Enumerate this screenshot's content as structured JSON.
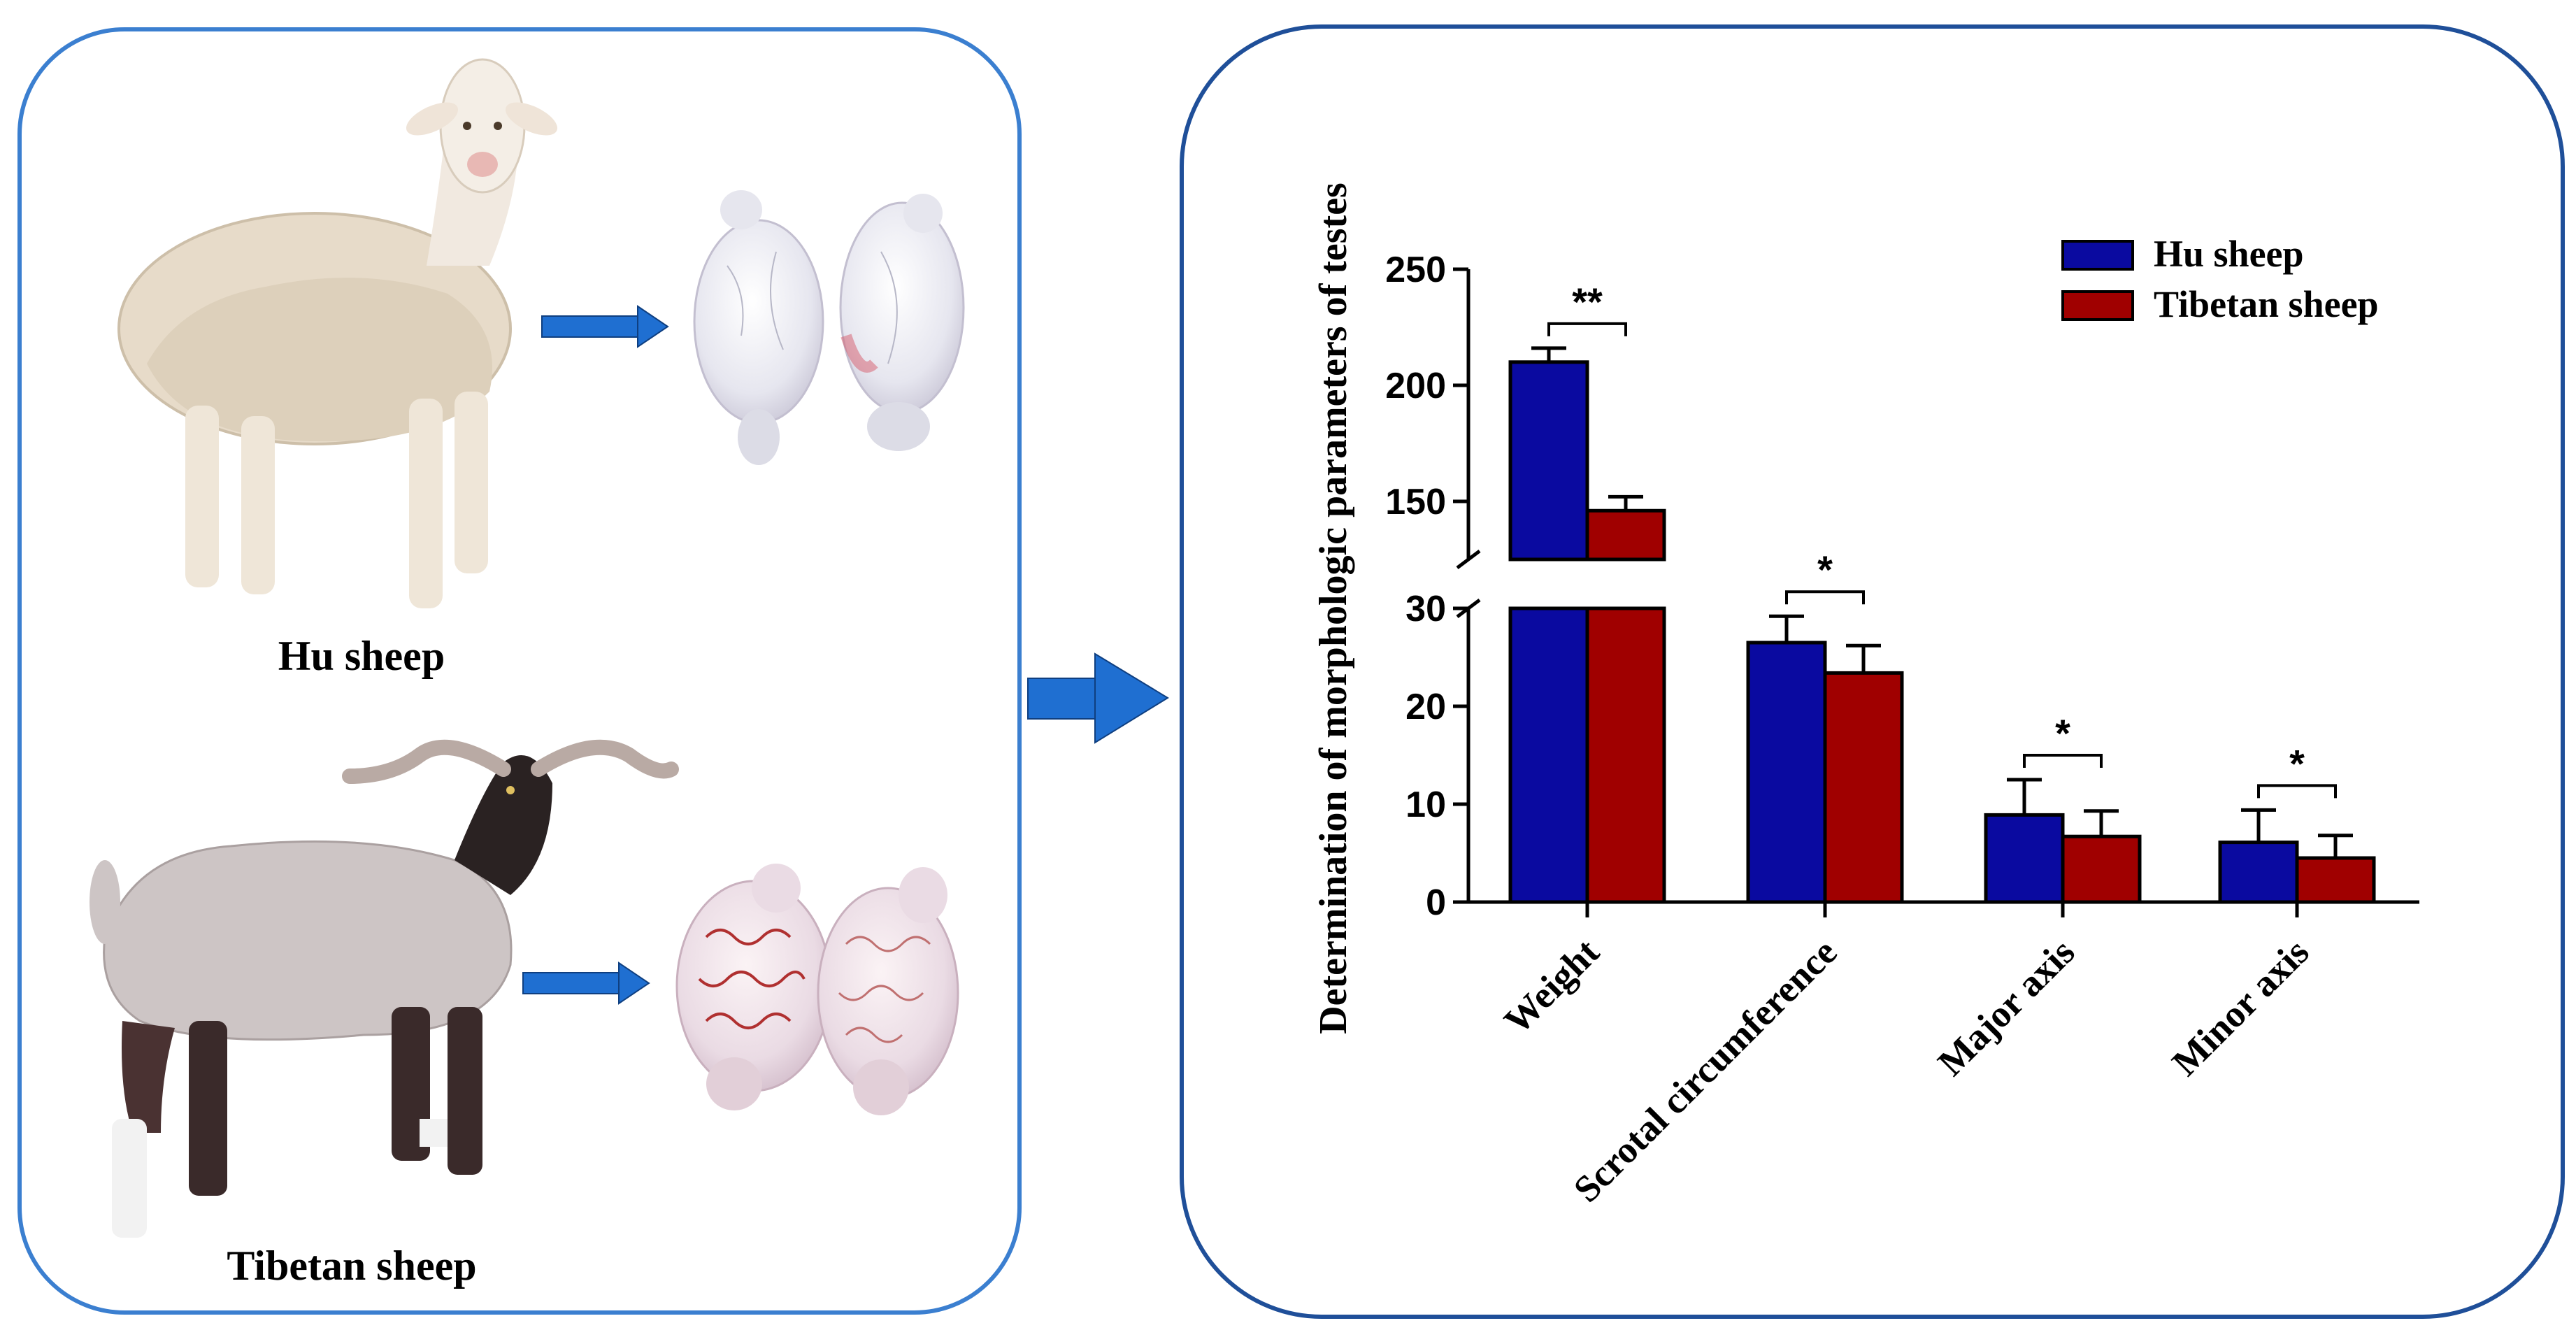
{
  "left_panel": {
    "labels": {
      "hu": "Hu sheep",
      "tibetan": "Tibetan sheep"
    }
  },
  "colors": {
    "panel_border_left": "#3b7fd0",
    "panel_border_right": "#1f4f99",
    "arrow": "#1f6fd1",
    "hu": "#0a0aa0",
    "tibetan": "#a00000",
    "hu_wool": "#e8dccb",
    "tibetan_body": "#cfc7c7",
    "tibetan_head": "#2a2222",
    "testis": "#eeeef4",
    "vessel": "#b03030"
  },
  "chart_data": {
    "type": "bar",
    "title": "",
    "ylabel": "Determination of morphologic parameters of testes",
    "xlabel": "",
    "categories": [
      "Weight",
      "Scrotal circumference",
      "Major axis",
      "Minor axis"
    ],
    "series": [
      {
        "name": "Hu sheep",
        "values": [
          210,
          26.5,
          8.9,
          6.1
        ],
        "errors": [
          6,
          2.7,
          3.6,
          3.3
        ]
      },
      {
        "name": "Tibetan sheep",
        "values": [
          146,
          23.4,
          6.7,
          4.5
        ],
        "errors": [
          6,
          2.8,
          2.6,
          2.3
        ]
      }
    ],
    "axis_break": {
      "lower": [
        0,
        30
      ],
      "upper": [
        125,
        250
      ]
    },
    "yticks_lower": [
      "0",
      "10",
      "20",
      "30"
    ],
    "yticks_upper": [
      "150",
      "200",
      "250"
    ],
    "significance": [
      "**",
      "*",
      "*",
      "*"
    ],
    "legend": {
      "position": "top-right",
      "entries": [
        "Hu sheep",
        "Tibetan sheep"
      ]
    }
  }
}
